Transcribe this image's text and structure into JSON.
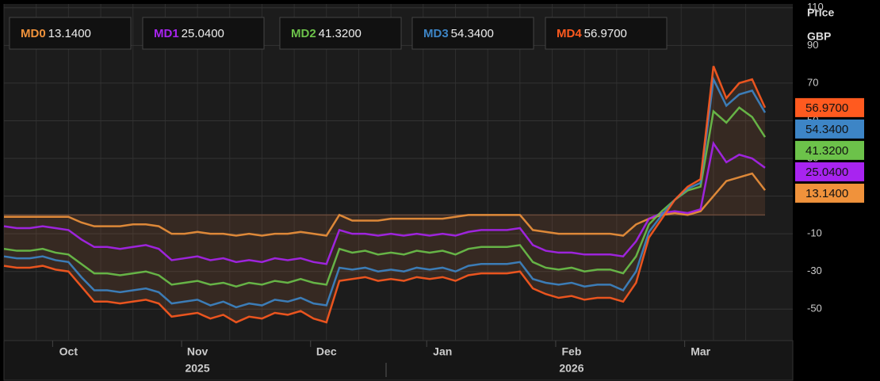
{
  "header": {
    "title": "Price",
    "unit": "GBP"
  },
  "chart_data": {
    "type": "line",
    "categories": [
      null,
      null,
      null,
      null,
      null,
      "Oct",
      null,
      null,
      null,
      null,
      null,
      null,
      null,
      null,
      null,
      "Nov",
      null,
      null,
      null,
      null,
      null,
      null,
      null,
      null,
      null,
      "Dec",
      null,
      null,
      null,
      null,
      null,
      null,
      null,
      null,
      "Jan",
      null,
      null,
      null,
      null,
      null,
      null,
      null,
      null,
      null,
      "Feb",
      null,
      null,
      null,
      null,
      null,
      null,
      null,
      null,
      null,
      "Mar",
      null,
      null,
      null,
      null,
      null
    ],
    "year_labels": [
      null,
      null,
      null,
      null,
      null,
      null,
      null,
      null,
      null,
      null,
      null,
      null,
      null,
      null,
      null,
      "2025",
      null,
      null,
      null,
      null,
      null,
      null,
      null,
      null,
      null,
      null,
      null,
      null,
      null,
      null,
      null,
      null,
      null,
      null,
      null,
      null,
      null,
      null,
      null,
      null,
      null,
      null,
      null,
      null,
      "2026",
      null,
      null,
      null,
      null,
      null,
      null,
      null,
      null,
      null,
      null,
      null,
      null,
      null,
      null,
      null
    ],
    "series": [
      {
        "name": "MD0",
        "color": "#f0923b",
        "last_label": "13.1400",
        "values": [
          -1,
          -1,
          -1,
          -1,
          -1,
          -1,
          -4,
          -6,
          -6,
          -6,
          -5,
          -5,
          -6,
          -10,
          -10,
          -9,
          -10,
          -10,
          -11,
          -10,
          -11,
          -10,
          -10,
          -9,
          -10,
          -11,
          0,
          -3,
          -3,
          -3,
          -2,
          -2,
          -2,
          -2,
          -2,
          -1,
          0,
          0,
          0,
          0,
          0,
          -8,
          -9,
          -10,
          -10,
          -10,
          -10,
          -10,
          -11,
          -5,
          -2,
          0,
          1,
          0,
          2,
          10,
          18,
          20,
          22,
          13.14
        ]
      },
      {
        "name": "MD1",
        "color": "#a824f0",
        "last_label": "25.0400",
        "values": [
          -6,
          -7,
          -7,
          -6,
          -7,
          -8,
          -13,
          -17,
          -17,
          -18,
          -17,
          -16,
          -18,
          -24,
          -23,
          -22,
          -24,
          -23,
          -25,
          -24,
          -25,
          -23,
          -24,
          -23,
          -25,
          -26,
          -8,
          -10,
          -10,
          -11,
          -10,
          -11,
          -10,
          -11,
          -10,
          -11,
          -9,
          -8,
          -8,
          -8,
          -7,
          -16,
          -19,
          -20,
          -20,
          -21,
          -21,
          -21,
          -22,
          -14,
          -2,
          1,
          2,
          1,
          3,
          38,
          28,
          32,
          30,
          25.04
        ]
      },
      {
        "name": "MD2",
        "color": "#6cc24a",
        "last_label": "41.3200",
        "values": [
          -18,
          -19,
          -19,
          -18,
          -20,
          -21,
          -26,
          -31,
          -31,
          -32,
          -31,
          -30,
          -32,
          -37,
          -36,
          -35,
          -37,
          -36,
          -38,
          -36,
          -37,
          -35,
          -36,
          -34,
          -36,
          -37,
          -18,
          -20,
          -19,
          -21,
          -20,
          -21,
          -19,
          -20,
          -19,
          -21,
          -18,
          -17,
          -17,
          -17,
          -16,
          -25,
          -28,
          -29,
          -28,
          -30,
          -29,
          -29,
          -31,
          -22,
          -5,
          2,
          8,
          13,
          15,
          55,
          49,
          57,
          52,
          41.32
        ]
      },
      {
        "name": "MD3",
        "color": "#3d85c6",
        "last_label": "54.3400",
        "values": [
          -22,
          -23,
          -23,
          -22,
          -24,
          -25,
          -33,
          -40,
          -40,
          -41,
          -40,
          -39,
          -41,
          -47,
          -46,
          -45,
          -48,
          -46,
          -49,
          -47,
          -48,
          -45,
          -46,
          -44,
          -47,
          -48,
          -28,
          -29,
          -28,
          -30,
          -29,
          -30,
          -28,
          -29,
          -28,
          -30,
          -27,
          -26,
          -26,
          -26,
          -25,
          -34,
          -36,
          -37,
          -36,
          -38,
          -37,
          -37,
          -40,
          -30,
          -9,
          0,
          8,
          14,
          17,
          72,
          58,
          64,
          66,
          54.34
        ]
      },
      {
        "name": "MD4",
        "color": "#ff5a1f",
        "last_label": "56.9700",
        "values": [
          -27,
          -28,
          -28,
          -27,
          -29,
          -30,
          -38,
          -46,
          -46,
          -47,
          -46,
          -45,
          -47,
          -54,
          -53,
          -52,
          -55,
          -53,
          -57,
          -54,
          -55,
          -52,
          -53,
          -51,
          -55,
          -57,
          -35,
          -34,
          -33,
          -35,
          -34,
          -35,
          -33,
          -34,
          -33,
          -35,
          -32,
          -31,
          -31,
          -31,
          -30,
          -39,
          -42,
          -44,
          -43,
          -45,
          -44,
          -44,
          -46,
          -36,
          -12,
          -2,
          8,
          15,
          19,
          79,
          62,
          70,
          72,
          56.97
        ]
      }
    ],
    "ylim": [
      -66.7,
      112
    ],
    "yticks": [
      -50,
      -30,
      -10,
      10,
      30,
      50,
      70,
      90,
      110
    ],
    "grid": true
  }
}
